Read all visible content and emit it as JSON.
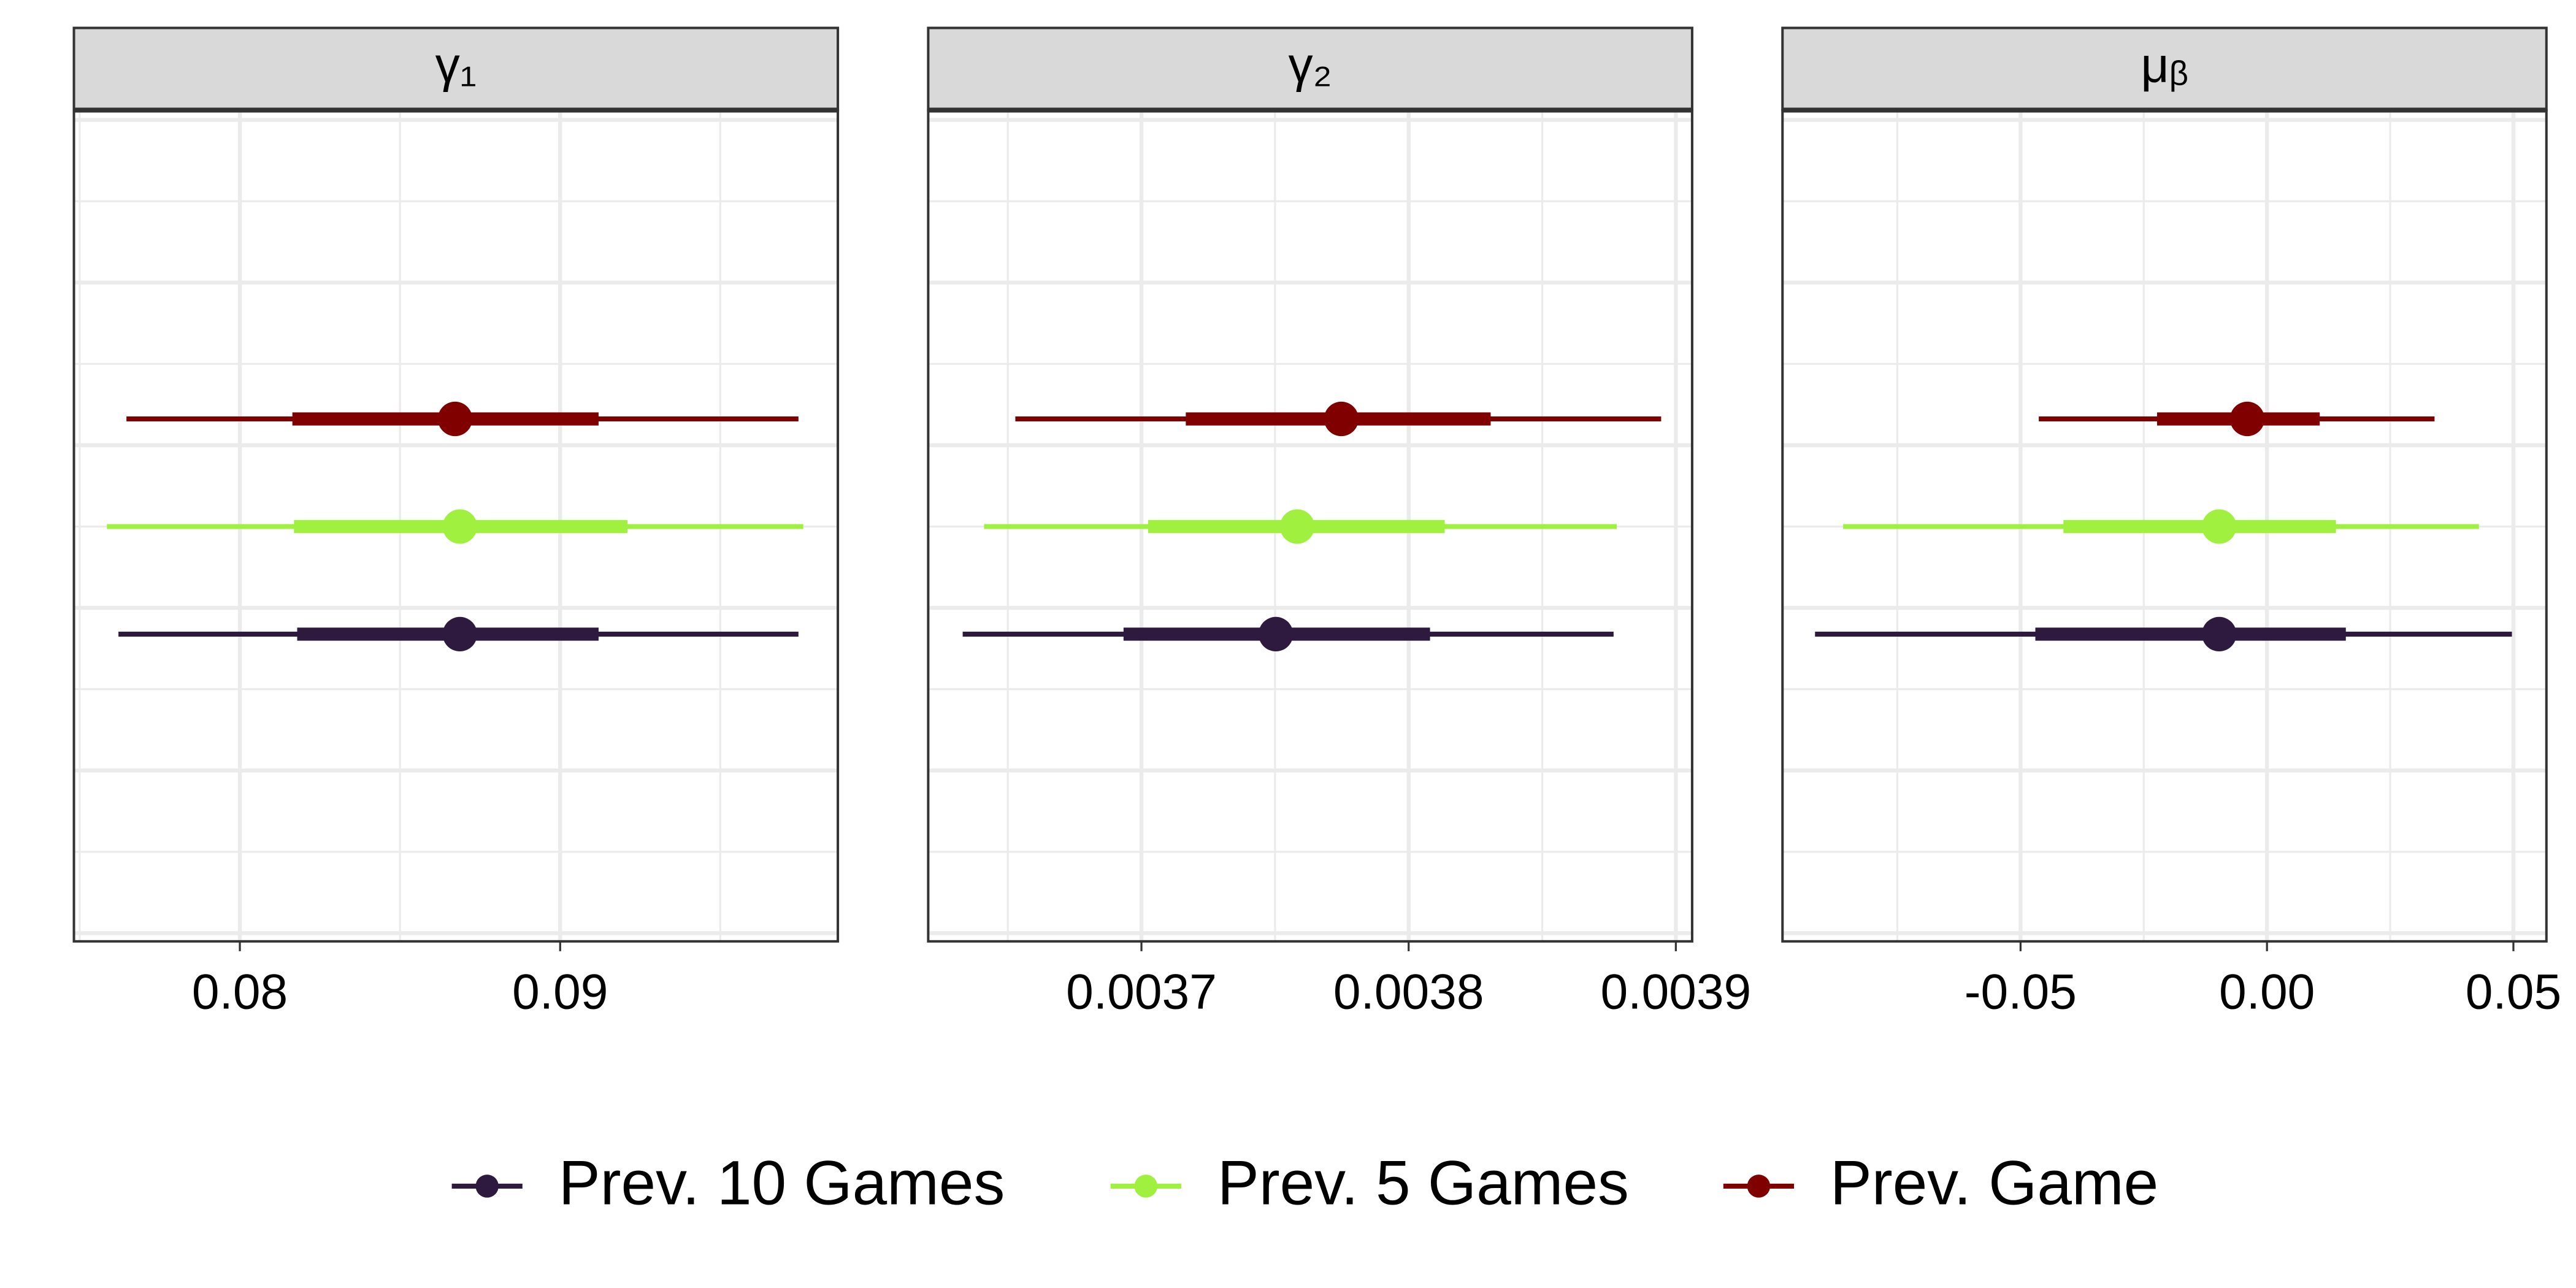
{
  "chart_data": {
    "type": "interval",
    "panels": [
      {
        "title": "γ₁",
        "xlim": [
          0.07482,
          0.09867
        ],
        "xticks": [
          0.08,
          0.09
        ]
      },
      {
        "title": "γ₂",
        "xlim": [
          0.0036202,
          0.0039061
        ],
        "xticks": [
          0.0037,
          0.0038,
          0.0039
        ]
      },
      {
        "title": "μᵦ",
        "xlim": [
          -0.0983,
          0.0567
        ],
        "xticks": [
          -0.05,
          {
            "value": 0,
            "label": "0.00"
          },
          0.05
        ]
      }
    ],
    "series": [
      {
        "name": "Prev. 10 Games",
        "color": "#2d1a3e",
        "values": [
          0.08687,
          0.0037503,
          -0.0097
        ],
        "lower": [
          0.07621,
          0.0036331,
          -0.0917
        ],
        "upper": [
          0.09744,
          0.0038767,
          0.0497
        ],
        "inner_lower": [
          0.08179,
          0.0036933,
          -0.047
        ],
        "inner_upper": [
          0.0912,
          0.003808,
          0.016
        ]
      },
      {
        "name": "Prev. 5 Games",
        "color": "#a0f040",
        "values": [
          0.08687,
          0.0037583,
          -0.0097
        ],
        "lower": [
          0.07585,
          0.0036411,
          -0.086
        ],
        "upper": [
          0.09759,
          0.0038779,
          0.043
        ],
        "inner_lower": [
          0.08169,
          0.0037025,
          -0.0413
        ],
        "inner_upper": [
          0.0921,
          0.0038135,
          0.014
        ]
      },
      {
        "name": "Prev. Game",
        "color": "#800000",
        "values": [
          0.08672,
          0.0037748,
          -0.004
        ],
        "lower": [
          0.07646,
          0.0036528,
          -0.0463
        ],
        "upper": [
          0.09744,
          0.0038945,
          0.034
        ],
        "inner_lower": [
          0.08164,
          0.0037166,
          -0.0223
        ],
        "inner_upper": [
          0.0912,
          0.0038307,
          0.0107
        ]
      }
    ],
    "grid": true
  }
}
